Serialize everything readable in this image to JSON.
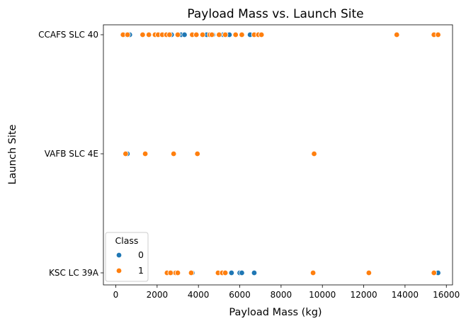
{
  "chart_data": {
    "type": "scatter",
    "title": "Payload Mass vs. Launch Site",
    "xlabel": "Payload Mass (kg)",
    "ylabel": "Launch Site",
    "xlim": [
      -600,
      16300
    ],
    "xticks": [
      0,
      2000,
      4000,
      6000,
      8000,
      10000,
      12000,
      14000,
      16000
    ],
    "categories": [
      "CCAFS SLC 40",
      "VAFB SLC 4E",
      "KSC LC 39A"
    ],
    "legend": {
      "title": "Class",
      "placement": "lower-left",
      "entries": [
        {
          "label": "0",
          "color": "#1f77b4"
        },
        {
          "label": "1",
          "color": "#ff7f0e"
        }
      ]
    },
    "series": [
      {
        "name": "0",
        "color": "#1f77b4",
        "points": [
          {
            "x": 500,
            "y": "CCAFS SLC 40"
          },
          {
            "x": 677,
            "y": "CCAFS SLC 40"
          },
          {
            "x": 2500,
            "y": "CCAFS SLC 40"
          },
          {
            "x": 2700,
            "y": "CCAFS SLC 40"
          },
          {
            "x": 3170,
            "y": "CCAFS SLC 40"
          },
          {
            "x": 3325,
            "y": "CCAFS SLC 40"
          },
          {
            "x": 4400,
            "y": "CCAFS SLC 40"
          },
          {
            "x": 4700,
            "y": "CCAFS SLC 40"
          },
          {
            "x": 5200,
            "y": "CCAFS SLC 40"
          },
          {
            "x": 5300,
            "y": "CCAFS SLC 40"
          },
          {
            "x": 5400,
            "y": "CCAFS SLC 40"
          },
          {
            "x": 5500,
            "y": "CCAFS SLC 40"
          },
          {
            "x": 6500,
            "y": "CCAFS SLC 40"
          },
          {
            "x": 560,
            "y": "VAFB SLC 4E"
          },
          {
            "x": 2700,
            "y": "KSC LC 39A"
          },
          {
            "x": 3700,
            "y": "KSC LC 39A"
          },
          {
            "x": 5300,
            "y": "KSC LC 39A"
          },
          {
            "x": 5600,
            "y": "KSC LC 39A"
          },
          {
            "x": 6000,
            "y": "KSC LC 39A"
          },
          {
            "x": 6100,
            "y": "KSC LC 39A"
          },
          {
            "x": 6700,
            "y": "KSC LC 39A"
          },
          {
            "x": 15600,
            "y": "KSC LC 39A"
          }
        ]
      },
      {
        "name": "1",
        "color": "#ff7f0e",
        "points": [
          {
            "x": 350,
            "y": "CCAFS SLC 40"
          },
          {
            "x": 570,
            "y": "CCAFS SLC 40"
          },
          {
            "x": 1300,
            "y": "CCAFS SLC 40"
          },
          {
            "x": 1600,
            "y": "CCAFS SLC 40"
          },
          {
            "x": 1900,
            "y": "CCAFS SLC 40"
          },
          {
            "x": 2050,
            "y": "CCAFS SLC 40"
          },
          {
            "x": 2250,
            "y": "CCAFS SLC 40"
          },
          {
            "x": 2450,
            "y": "CCAFS SLC 40"
          },
          {
            "x": 2600,
            "y": "CCAFS SLC 40"
          },
          {
            "x": 3000,
            "y": "CCAFS SLC 40"
          },
          {
            "x": 3700,
            "y": "CCAFS SLC 40"
          },
          {
            "x": 3900,
            "y": "CCAFS SLC 40"
          },
          {
            "x": 4200,
            "y": "CCAFS SLC 40"
          },
          {
            "x": 4550,
            "y": "CCAFS SLC 40"
          },
          {
            "x": 4650,
            "y": "CCAFS SLC 40"
          },
          {
            "x": 5000,
            "y": "CCAFS SLC 40"
          },
          {
            "x": 5300,
            "y": "CCAFS SLC 40"
          },
          {
            "x": 5800,
            "y": "CCAFS SLC 40"
          },
          {
            "x": 6100,
            "y": "CCAFS SLC 40"
          },
          {
            "x": 6700,
            "y": "CCAFS SLC 40"
          },
          {
            "x": 6900,
            "y": "CCAFS SLC 40"
          },
          {
            "x": 7050,
            "y": "CCAFS SLC 40"
          },
          {
            "x": 13600,
            "y": "CCAFS SLC 40"
          },
          {
            "x": 15400,
            "y": "CCAFS SLC 40"
          },
          {
            "x": 15600,
            "y": "CCAFS SLC 40"
          },
          {
            "x": 475,
            "y": "VAFB SLC 4E"
          },
          {
            "x": 1425,
            "y": "VAFB SLC 4E"
          },
          {
            "x": 2800,
            "y": "VAFB SLC 4E"
          },
          {
            "x": 3950,
            "y": "VAFB SLC 4E"
          },
          {
            "x": 9600,
            "y": "VAFB SLC 4E"
          },
          {
            "x": 2480,
            "y": "KSC LC 39A"
          },
          {
            "x": 2650,
            "y": "KSC LC 39A"
          },
          {
            "x": 2900,
            "y": "KSC LC 39A"
          },
          {
            "x": 3000,
            "y": "KSC LC 39A"
          },
          {
            "x": 3650,
            "y": "KSC LC 39A"
          },
          {
            "x": 4950,
            "y": "KSC LC 39A"
          },
          {
            "x": 5150,
            "y": "KSC LC 39A"
          },
          {
            "x": 5300,
            "y": "KSC LC 39A"
          },
          {
            "x": 9550,
            "y": "KSC LC 39A"
          },
          {
            "x": 12250,
            "y": "KSC LC 39A"
          },
          {
            "x": 15400,
            "y": "KSC LC 39A"
          }
        ]
      }
    ]
  }
}
